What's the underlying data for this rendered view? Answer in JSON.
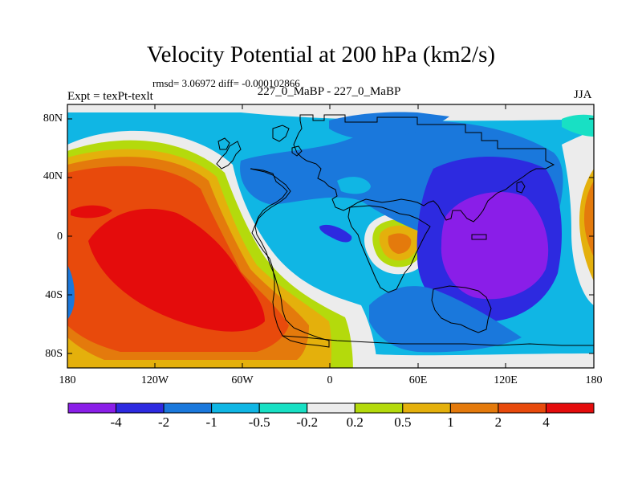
{
  "header": {
    "title": "Velocity Potential at 200 hPa (km2/s)",
    "stats": "rmsd= 3.06972  diff= -0.000102866",
    "left_label": "Expt = texPt-texlt",
    "center_label": "227_0_MaBP - 227_0_MaBP",
    "right_label": "JJA"
  },
  "map": {
    "lat_ticks": [
      "80N",
      "40N",
      "0",
      "40S",
      "80S"
    ],
    "lon_ticks": [
      "180",
      "120W",
      "60W",
      "0",
      "60E",
      "120E",
      "180"
    ]
  },
  "colorbar": {
    "levels": [
      "-4",
      "-2",
      "-1",
      "-0.5",
      "-0.2",
      "0.2",
      "0.5",
      "1",
      "2",
      "4"
    ],
    "colors": [
      "#8a1ee8",
      "#2d2ae0",
      "#1a78dc",
      "#10b6e4",
      "#18e0c4",
      "#ececec",
      "#b4da0c",
      "#e4b00c",
      "#e47a0c",
      "#e84a0c",
      "#e40c0c"
    ]
  }
}
